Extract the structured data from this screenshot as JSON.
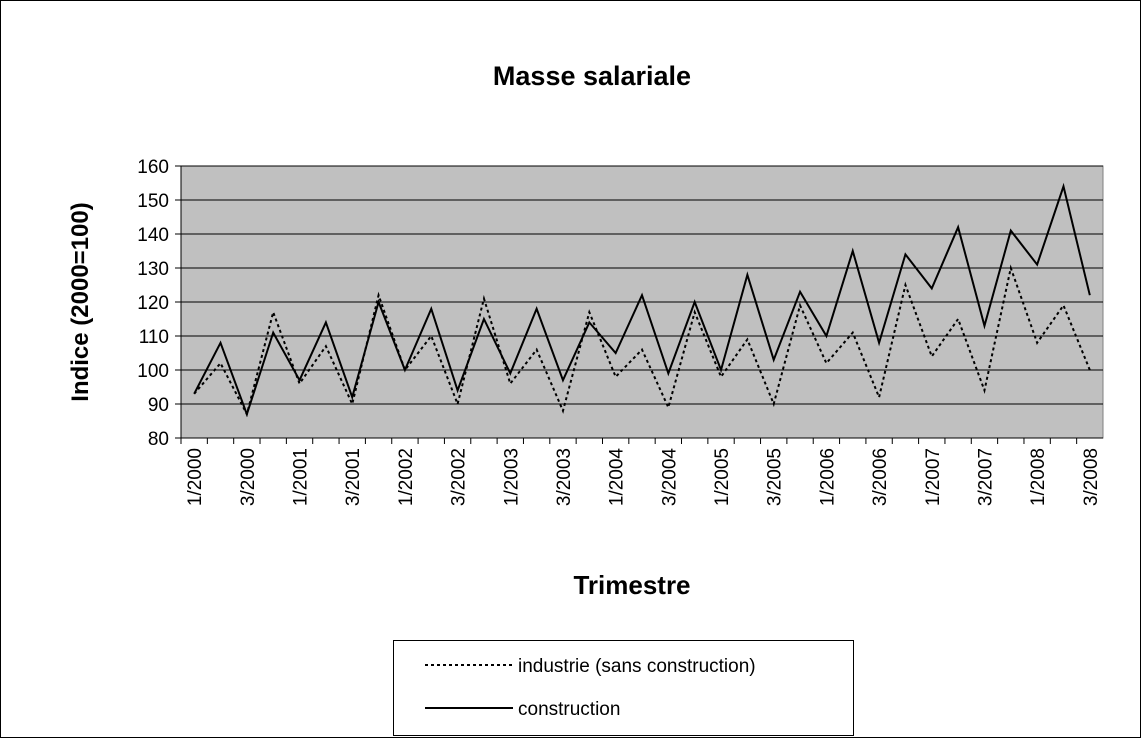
{
  "chart_data": {
    "type": "line",
    "title": "Masse salariale",
    "x_label": "Trimestre",
    "y_label": "Indice (2000=100)",
    "categories": [
      "1/2000",
      null,
      "3/2000",
      null,
      "1/2001",
      null,
      "3/2001",
      null,
      "1/2002",
      null,
      "3/2002",
      null,
      "1/2003",
      null,
      "3/2003",
      null,
      "1/2004",
      null,
      "3/2004",
      null,
      "1/2005",
      null,
      "3/2005",
      null,
      "1/2006",
      null,
      "3/2006",
      null,
      "1/2007",
      null,
      "3/2007",
      null,
      "1/2008",
      null,
      "3/2008"
    ],
    "series": [
      {
        "name": "industrie (sans construction)",
        "color": "#000000",
        "dash": true,
        "values": [
          93,
          102,
          87,
          117,
          96,
          107,
          90,
          122,
          100,
          110,
          90,
          121,
          96,
          106,
          88,
          117,
          98,
          106,
          89,
          117,
          98,
          109,
          90,
          119,
          102,
          111,
          92,
          125,
          104,
          115,
          94,
          130,
          108,
          119,
          100
        ]
      },
      {
        "name": "construction",
        "color": "#000000",
        "dash": false,
        "values": [
          93,
          108,
          87,
          111,
          97,
          114,
          92,
          120,
          100,
          118,
          94,
          115,
          99,
          118,
          97,
          114,
          105,
          122,
          99,
          120,
          100,
          128,
          103,
          123,
          110,
          135,
          108,
          134,
          124,
          142,
          113,
          141,
          131,
          154,
          122
        ]
      }
    ],
    "ylim": [
      80,
      160
    ],
    "yticks": [
      80,
      90,
      100,
      110,
      120,
      130,
      140,
      150,
      160
    ],
    "grid": true,
    "legend": "bottom"
  }
}
